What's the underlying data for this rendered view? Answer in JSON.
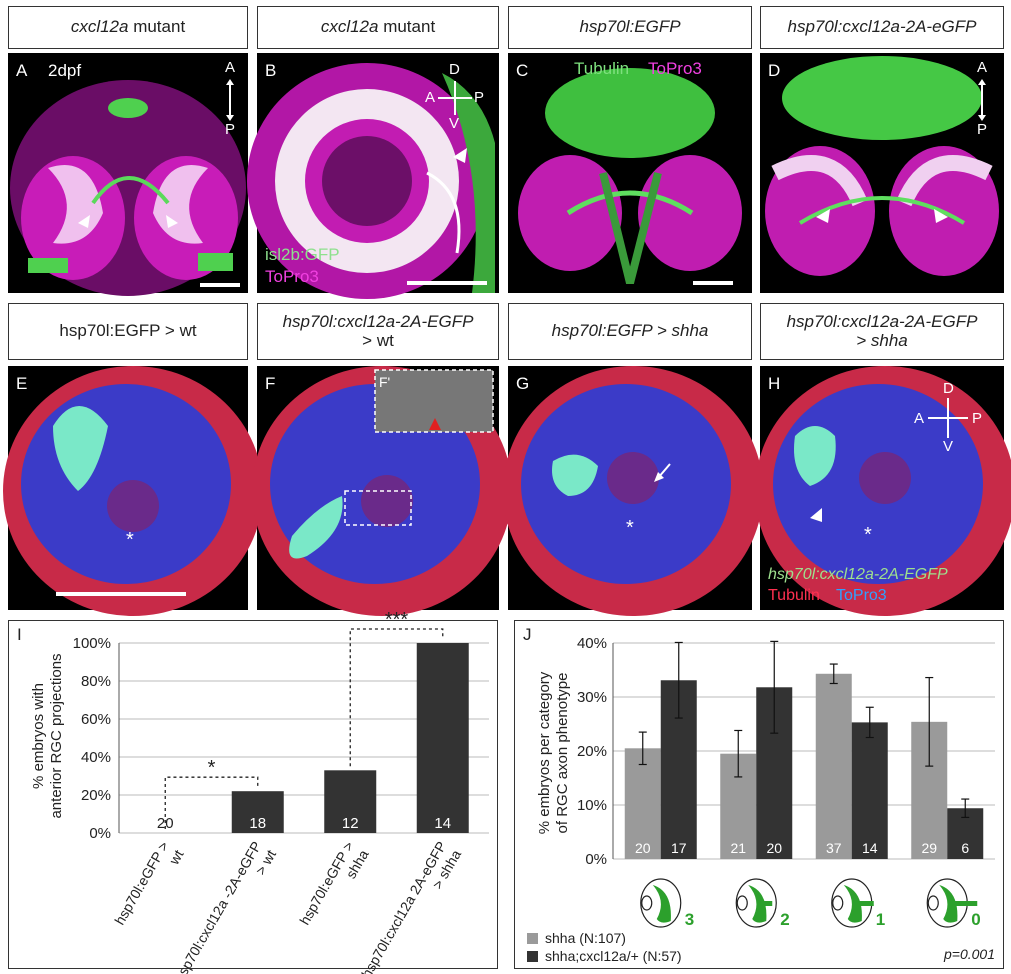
{
  "headers_top": [
    {
      "italic": "cxcl12a",
      "rest": " mutant"
    },
    {
      "italic": "cxcl12a",
      "rest": " mutant"
    },
    {
      "italic": "hsp70l:EGFP",
      "rest": ""
    },
    {
      "italic": "hsp70l:cxcl12a-2A-eGFP",
      "rest": ""
    }
  ],
  "headers_mid": [
    {
      "line1": "hsp70l:EGFP > wt",
      "line2": ""
    },
    {
      "line1": "hsp70l:cxcl12a-2A-EGFP",
      "line2": "> wt"
    },
    {
      "line1": "hsp70l:EGFP > shha",
      "line2": ""
    },
    {
      "line1": "hsp70l:cxcl12a-2A-EGFP",
      "line2": "> shha"
    }
  ],
  "panels": {
    "A": {
      "label": "A",
      "age": "2dpf",
      "axis_top": "A",
      "axis_bottom": "P"
    },
    "B": {
      "label": "B",
      "legend1": "isl2b:GFP",
      "legend2": "ToPro3",
      "ax_d": "D",
      "ax_v": "V",
      "ax_a": "A",
      "ax_p": "P"
    },
    "C": {
      "label": "C",
      "legend_g": "Tubulin",
      "legend_m": "ToPro3"
    },
    "D": {
      "label": "D",
      "axis_top": "A",
      "axis_bottom": "P"
    },
    "E": {
      "label": "E"
    },
    "F": {
      "label": "F",
      "inset": "F'"
    },
    "G": {
      "label": "G"
    },
    "H": {
      "label": "H",
      "ax_d": "D",
      "ax_v": "V",
      "ax_a": "A",
      "ax_p": "P",
      "legend1": "hsp70l:cxcl12a-2A-EGFP",
      "legend2": "Tubulin",
      "legend3": "ToPro3"
    }
  },
  "colors": {
    "green": "#4dd94d",
    "magenta": "#d020c0",
    "red": "#e0304a",
    "blue": "#3a3ad0",
    "dark_bar": "#333333",
    "light_bar": "#9a9a9a",
    "label_green": "#2ca02c"
  },
  "chart_data": [
    {
      "type": "bar",
      "panel": "I",
      "ylabel": "% embryos with anterior RGC projections",
      "ylim": [
        0,
        100
      ],
      "yticks": [
        "0%",
        "20%",
        "40%",
        "60%",
        "80%",
        "100%"
      ],
      "categories": [
        "hsp70l:eGFP > wt",
        "hsp70l:cxcl12a -2A-eGFP > wt",
        "hsp70l:eGFP > shha",
        "hsp70l:cxcl12a 2A-eGFP > shha"
      ],
      "values": [
        0,
        22,
        33,
        100
      ],
      "n": [
        "20",
        "18",
        "12",
        "14"
      ],
      "annotations": [
        {
          "between": [
            0,
            1
          ],
          "text": "*"
        },
        {
          "between": [
            2,
            3
          ],
          "text": "***"
        }
      ]
    },
    {
      "type": "bar",
      "panel": "J",
      "ylabel": "% embryos per category of RGC axon phenotype",
      "ylim": [
        0,
        40
      ],
      "yticks": [
        "0%",
        "10%",
        "20%",
        "30%",
        "40%"
      ],
      "categories": [
        "3",
        "2",
        "1",
        "0"
      ],
      "series": [
        {
          "name": "shha (N:107)",
          "values": [
            20.5,
            19.5,
            34.3,
            25.4
          ],
          "err": [
            3,
            4.3,
            1.8,
            8.2
          ],
          "n": [
            "20",
            "21",
            "37",
            "29"
          ]
        },
        {
          "name": "shha;cxcl12a/+ (N:57)",
          "values": [
            33.1,
            31.8,
            25.3,
            9.4
          ],
          "err": [
            7,
            8.5,
            2.8,
            1.7
          ],
          "n": [
            "17",
            "20",
            "14",
            "6"
          ]
        }
      ],
      "pvalue": "p=0.001"
    }
  ]
}
